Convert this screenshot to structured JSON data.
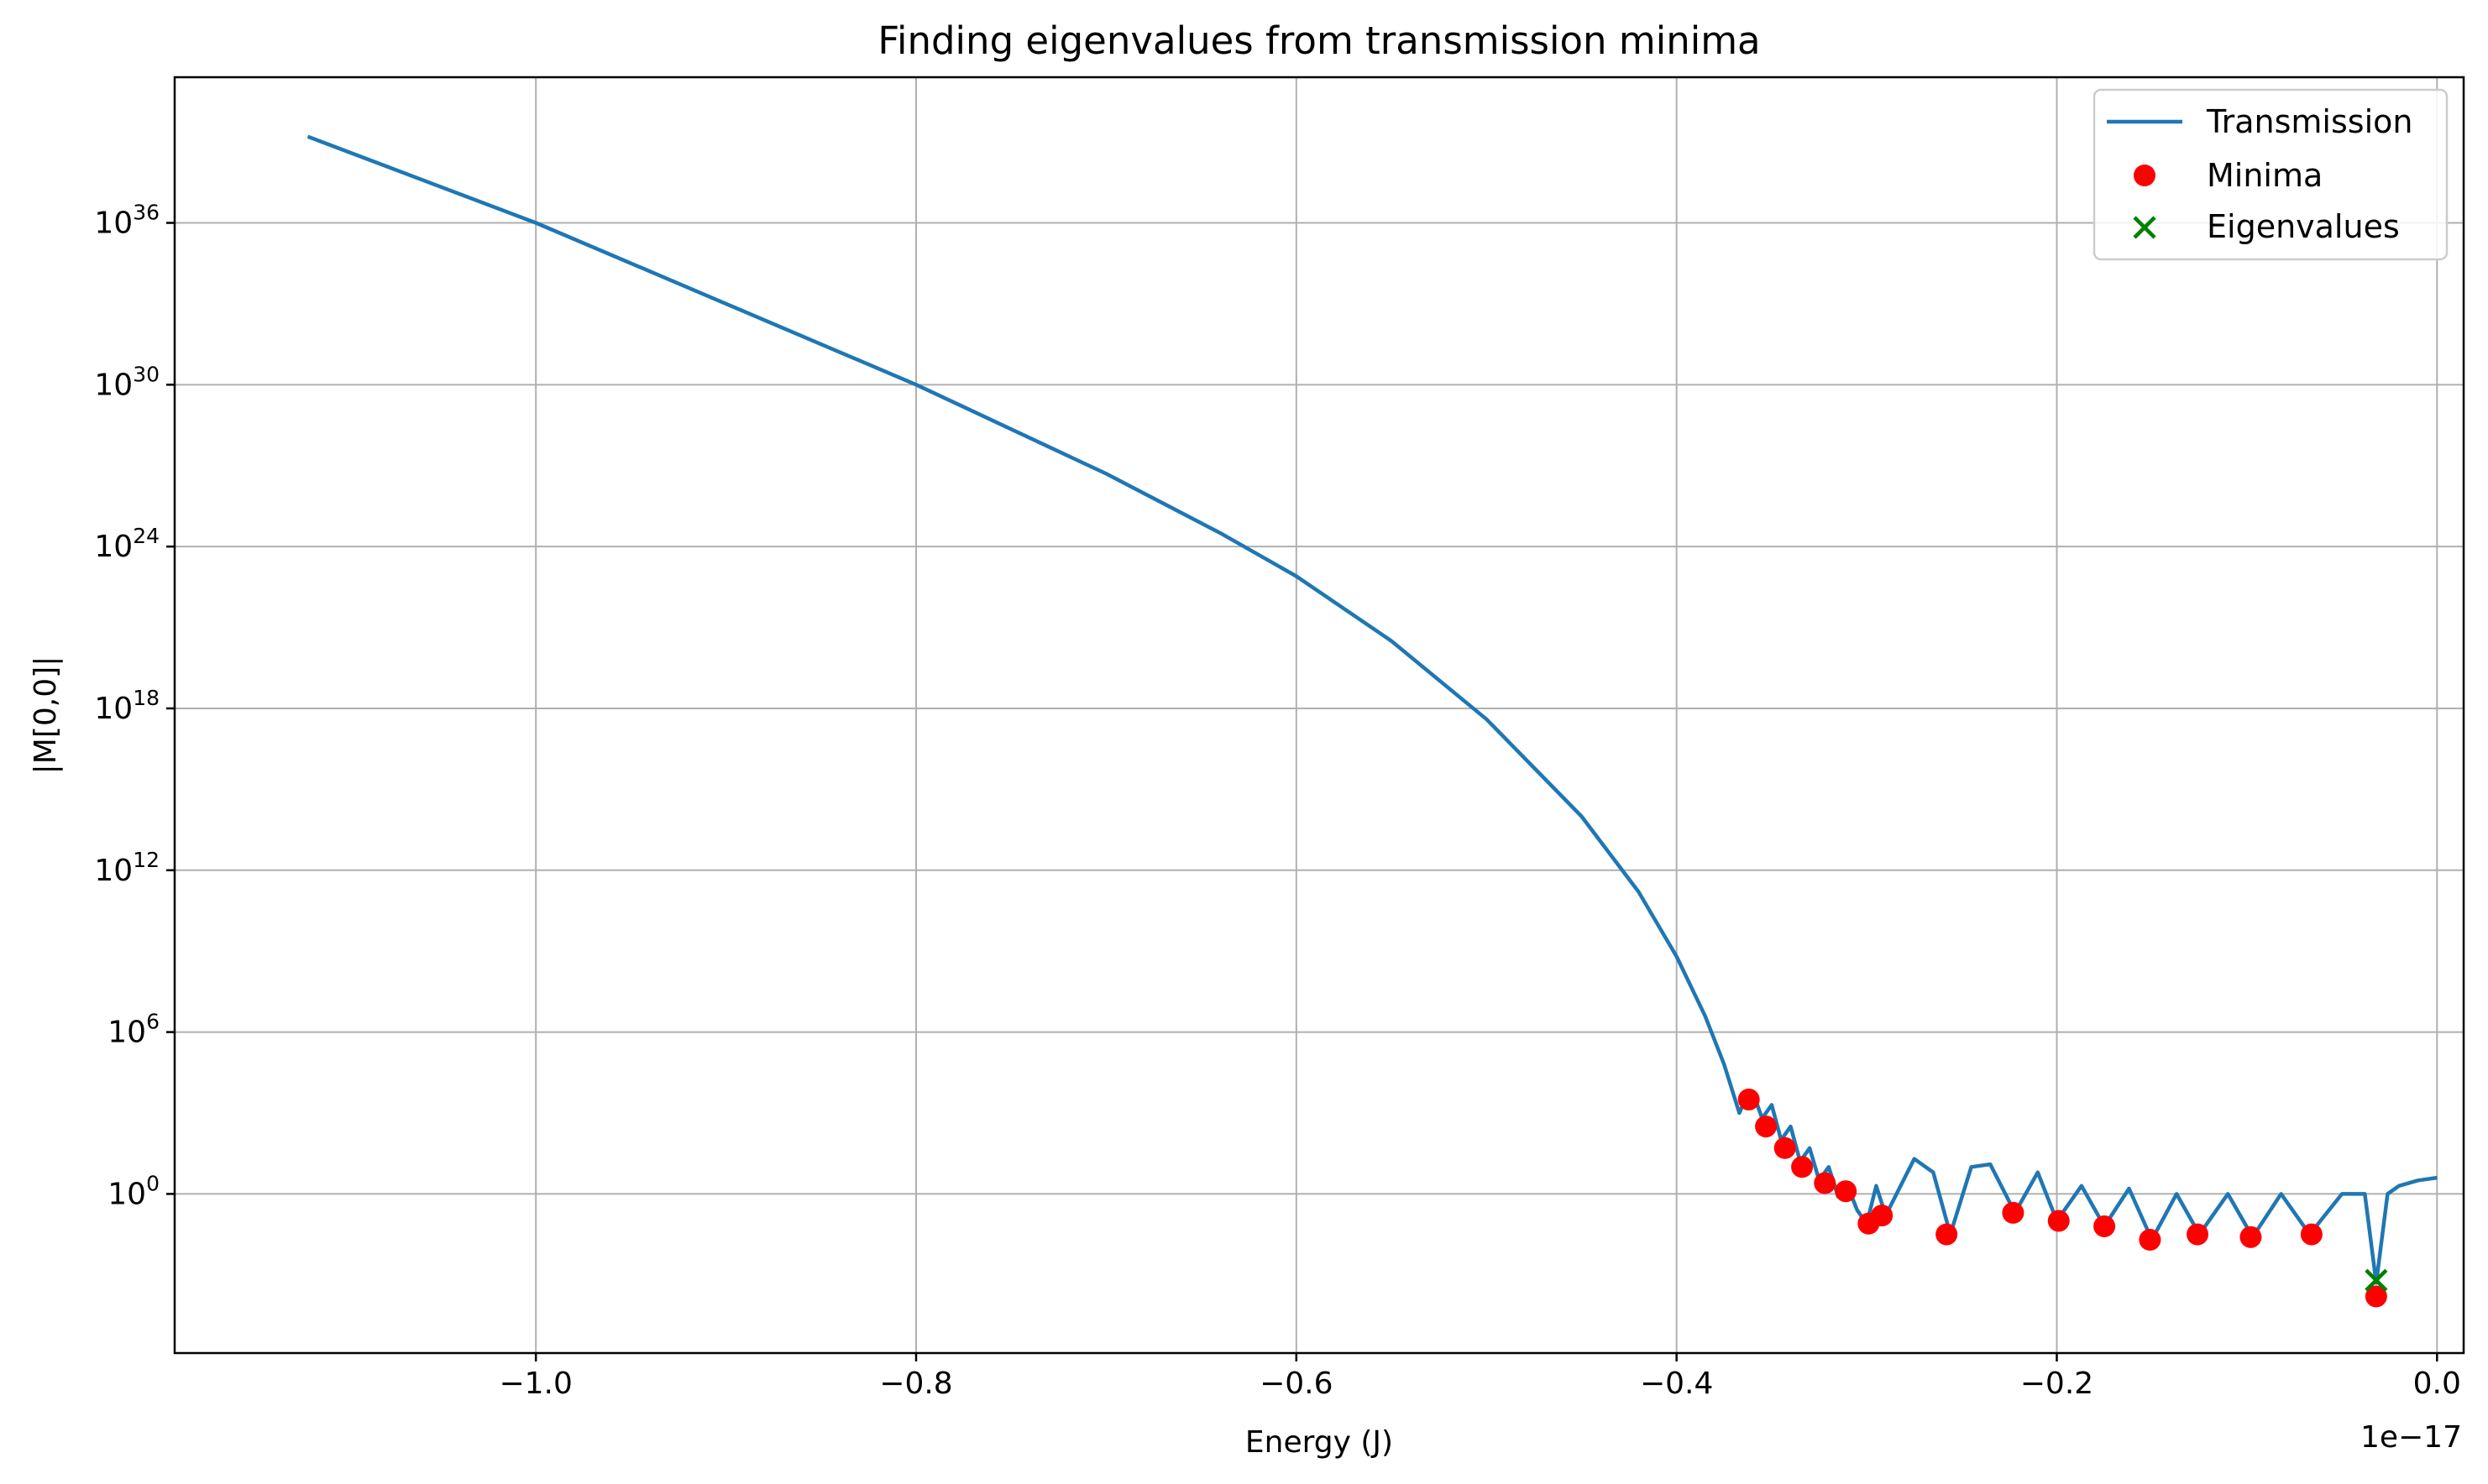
{
  "chart_data": {
    "type": "line",
    "title": "Finding eigenvalues from transmission minima",
    "xlabel": "Energy (J)",
    "ylabel": "|M[0,0]|",
    "x_offset_label": "1e−17",
    "xscale": "linear",
    "yscale": "log",
    "grid": true,
    "legend_position": "top-right",
    "xlim": [
      -1.19,
      0.014
    ],
    "ylim_log10": [
      -5.9,
      41.4
    ],
    "xticks": [
      -1.0,
      -0.8,
      -0.6,
      -0.4,
      -0.2,
      0.0
    ],
    "xtick_labels": [
      "−1.0",
      "−0.8",
      "−0.6",
      "−0.4",
      "−0.2",
      "0.0"
    ],
    "yticks_log10": [
      0,
      6,
      12,
      18,
      24,
      30,
      36
    ],
    "ytick_labels": [
      {
        "base": "10",
        "exp": "0"
      },
      {
        "base": "10",
        "exp": "6"
      },
      {
        "base": "10",
        "exp": "12"
      },
      {
        "base": "10",
        "exp": "18"
      },
      {
        "base": "10",
        "exp": "24"
      },
      {
        "base": "10",
        "exp": "30"
      },
      {
        "base": "10",
        "exp": "36"
      }
    ],
    "series": [
      {
        "name": "Transmission",
        "kind": "line",
        "color": "#1f77b4",
        "x": [
          -1.12,
          -1.0,
          -0.9,
          -0.8,
          -0.7,
          -0.64,
          -0.6,
          -0.55,
          -0.5,
          -0.45,
          -0.42,
          -0.4,
          -0.385,
          -0.375,
          -0.367,
          -0.362,
          -0.36,
          -0.355,
          -0.35,
          -0.345,
          -0.34,
          -0.335,
          -0.33,
          -0.325,
          -0.32,
          -0.315,
          -0.31,
          -0.305,
          -0.3,
          -0.295,
          -0.29,
          -0.275,
          -0.265,
          -0.256,
          -0.245,
          -0.235,
          -0.222,
          -0.21,
          -0.2,
          -0.187,
          -0.175,
          -0.162,
          -0.15,
          -0.137,
          -0.125,
          -0.11,
          -0.097,
          -0.082,
          -0.067,
          -0.05,
          -0.038,
          -0.032,
          -0.026,
          -0.02,
          -0.01,
          0.0
        ],
        "log10_y": [
          39.2,
          36.0,
          33.0,
          30.0,
          26.7,
          24.5,
          22.9,
          20.5,
          17.6,
          14.0,
          11.2,
          8.8,
          6.6,
          4.8,
          3.0,
          3.8,
          3.8,
          2.8,
          3.3,
          2.0,
          2.5,
          1.2,
          1.7,
          0.5,
          1.0,
          -0.1,
          0.3,
          -0.6,
          -1.1,
          0.3,
          -0.8,
          1.3,
          0.8,
          -1.5,
          1.0,
          1.1,
          -0.7,
          0.8,
          -1.0,
          0.3,
          -1.2,
          0.2,
          -1.7,
          0.0,
          -1.5,
          0.0,
          -1.6,
          0.0,
          -1.5,
          0.0,
          0.0,
          -3.3,
          0.0,
          0.3,
          0.5,
          0.6
        ]
      },
      {
        "name": "Minima",
        "kind": "scatter",
        "marker": "circle",
        "color": "#ff0000",
        "x": [
          -0.362,
          -0.353,
          -0.343,
          -0.334,
          -0.322,
          -0.311,
          -0.299,
          -0.292,
          -0.258,
          -0.223,
          -0.199,
          -0.175,
          -0.151,
          -0.126,
          -0.098,
          -0.066,
          -0.032
        ],
        "log10_y": [
          3.5,
          2.5,
          1.7,
          1.0,
          0.4,
          0.1,
          -1.1,
          -0.8,
          -1.5,
          -0.7,
          -1.0,
          -1.2,
          -1.7,
          -1.5,
          -1.6,
          -1.5,
          -3.8
        ]
      },
      {
        "name": "Eigenvalues",
        "kind": "scatter",
        "marker": "x",
        "color": "#008000",
        "x": [
          -0.032
        ],
        "log10_y": [
          -3.2
        ]
      }
    ]
  }
}
